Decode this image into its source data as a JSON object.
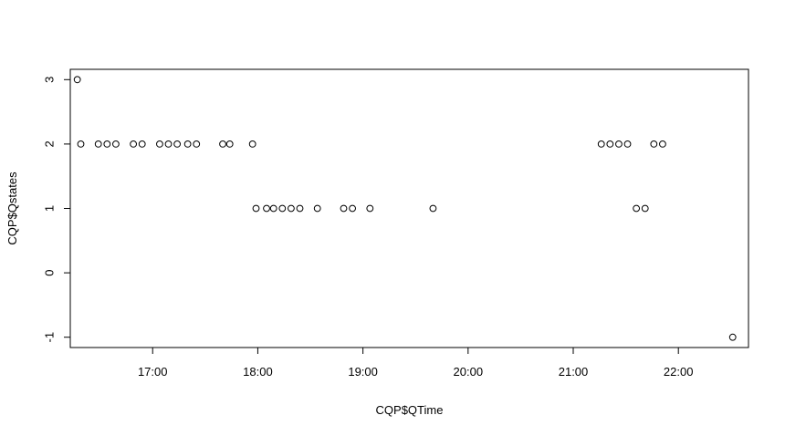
{
  "chart_data": {
    "type": "scatter",
    "title": "",
    "xlabel": "CQP$QTime",
    "ylabel": "CQP$Qstates",
    "xlim": [
      "16:13",
      "22:40"
    ],
    "ylim": [
      -1.16,
      3.16
    ],
    "x_ticks": [
      "17:00",
      "18:00",
      "19:00",
      "20:00",
      "21:00",
      "22:00"
    ],
    "y_ticks": [
      "-1",
      "0",
      "1",
      "2",
      "3"
    ],
    "grid": false,
    "legend": "none",
    "marker": "open-circle",
    "colors": {
      "point": "#000000",
      "axis": "#000000",
      "background": "#ffffff"
    },
    "points": [
      {
        "x": "16:17",
        "y": 3
      },
      {
        "x": "16:19",
        "y": 2
      },
      {
        "x": "16:29",
        "y": 2
      },
      {
        "x": "16:34",
        "y": 2
      },
      {
        "x": "16:39",
        "y": 2
      },
      {
        "x": "16:49",
        "y": 2
      },
      {
        "x": "16:54",
        "y": 2
      },
      {
        "x": "17:04",
        "y": 2
      },
      {
        "x": "17:09",
        "y": 2
      },
      {
        "x": "17:14",
        "y": 2
      },
      {
        "x": "17:20",
        "y": 2
      },
      {
        "x": "17:25",
        "y": 2
      },
      {
        "x": "17:40",
        "y": 2
      },
      {
        "x": "17:44",
        "y": 2
      },
      {
        "x": "17:57",
        "y": 2
      },
      {
        "x": "17:59",
        "y": 1
      },
      {
        "x": "18:05",
        "y": 1
      },
      {
        "x": "18:09",
        "y": 1
      },
      {
        "x": "18:14",
        "y": 1
      },
      {
        "x": "18:19",
        "y": 1
      },
      {
        "x": "18:24",
        "y": 1
      },
      {
        "x": "18:34",
        "y": 1
      },
      {
        "x": "18:49",
        "y": 1
      },
      {
        "x": "18:54",
        "y": 1
      },
      {
        "x": "19:04",
        "y": 1
      },
      {
        "x": "19:40",
        "y": 1
      },
      {
        "x": "21:16",
        "y": 2
      },
      {
        "x": "21:21",
        "y": 2
      },
      {
        "x": "21:26",
        "y": 2
      },
      {
        "x": "21:31",
        "y": 2
      },
      {
        "x": "21:36",
        "y": 1
      },
      {
        "x": "21:41",
        "y": 1
      },
      {
        "x": "21:46",
        "y": 2
      },
      {
        "x": "21:51",
        "y": 2
      },
      {
        "x": "22:31",
        "y": -1
      }
    ]
  }
}
